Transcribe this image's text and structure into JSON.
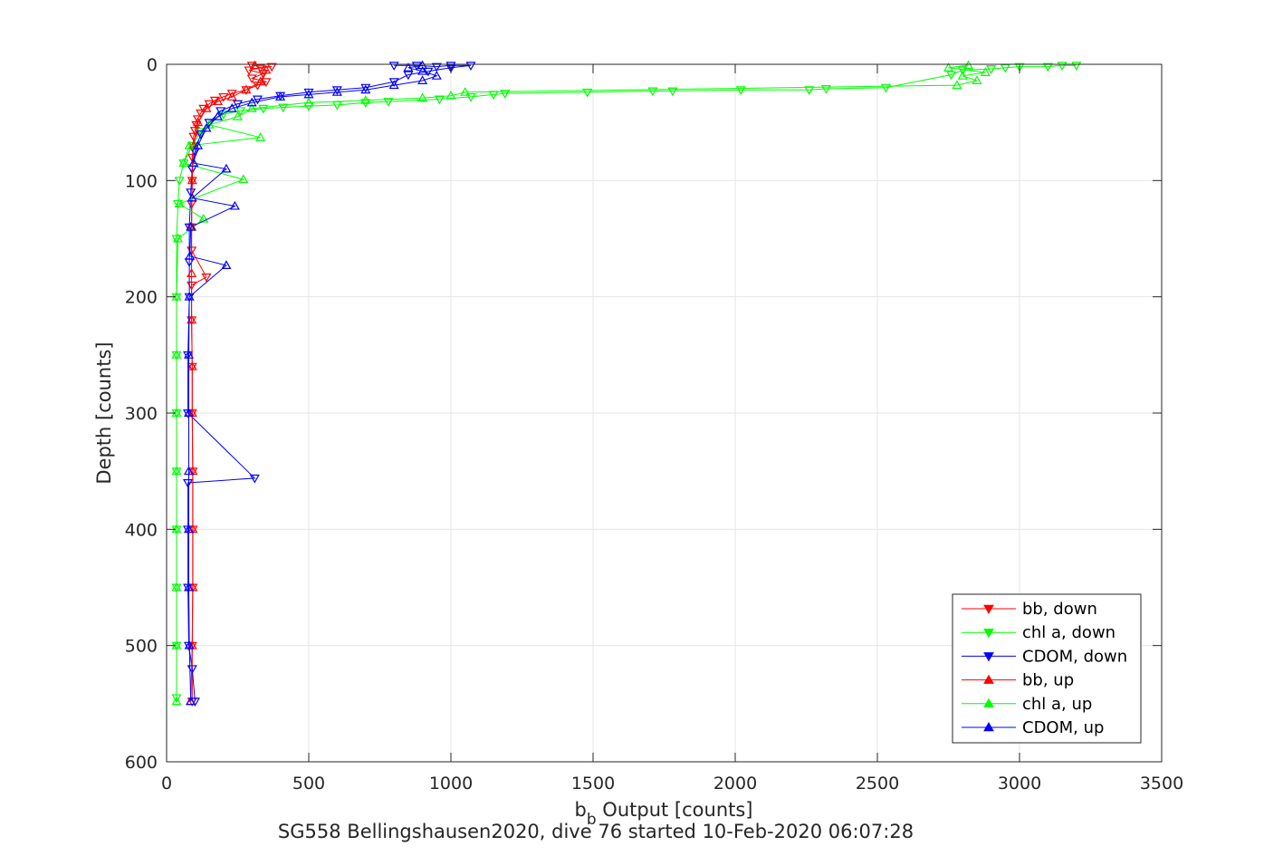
{
  "chart_data": {
    "type": "line",
    "title": "",
    "xlabel": {
      "main": "b",
      "subscript": "b",
      "rest": " Output [counts]"
    },
    "ylabel": "Depth [counts]",
    "caption": "SG558 Bellingshausen2020, dive 76 started 10-Feb-2020 06:07:28",
    "xlim": [
      0,
      3500
    ],
    "ylim": [
      0,
      600
    ],
    "y_reversed": true,
    "grid": true,
    "legend_position": "bottom-right",
    "x_ticks": [
      0,
      500,
      1000,
      1500,
      2000,
      2500,
      3000,
      3500
    ],
    "y_ticks": [
      0,
      100,
      200,
      300,
      400,
      500,
      600
    ],
    "series": [
      {
        "name": "bb, down",
        "color": "#ff0000",
        "marker": "triangle-down",
        "points": [
          [
            300,
            1
          ],
          [
            370,
            2
          ],
          [
            330,
            3
          ],
          [
            290,
            5
          ],
          [
            340,
            8
          ],
          [
            300,
            12
          ],
          [
            350,
            15
          ],
          [
            320,
            18
          ],
          [
            280,
            22
          ],
          [
            230,
            25
          ],
          [
            200,
            28
          ],
          [
            170,
            31
          ],
          [
            150,
            34
          ],
          [
            130,
            38
          ],
          [
            120,
            42
          ],
          [
            110,
            47
          ],
          [
            105,
            52
          ],
          [
            100,
            57
          ],
          [
            95,
            62
          ],
          [
            95,
            70
          ],
          [
            90,
            80
          ],
          [
            90,
            90
          ],
          [
            90,
            100
          ],
          [
            88,
            120
          ],
          [
            88,
            140
          ],
          [
            88,
            160
          ],
          [
            140,
            183
          ],
          [
            88,
            190
          ],
          [
            88,
            220
          ],
          [
            90,
            260
          ],
          [
            90,
            300
          ],
          [
            92,
            350
          ],
          [
            92,
            400
          ],
          [
            92,
            450
          ],
          [
            90,
            500
          ],
          [
            90,
            548
          ]
        ]
      },
      {
        "name": "chl a, down",
        "color": "#00ff00",
        "marker": "triangle-down",
        "points": [
          [
            3200,
            1
          ],
          [
            3150,
            1
          ],
          [
            3100,
            2
          ],
          [
            3000,
            2
          ],
          [
            2950,
            3
          ],
          [
            2900,
            4
          ],
          [
            2800,
            5
          ],
          [
            2760,
            9
          ],
          [
            2530,
            20
          ],
          [
            2320,
            21
          ],
          [
            2260,
            22
          ],
          [
            2020,
            22
          ],
          [
            1780,
            23
          ],
          [
            1710,
            23
          ],
          [
            1480,
            24
          ],
          [
            1190,
            25
          ],
          [
            1150,
            26
          ],
          [
            1070,
            28
          ],
          [
            960,
            30
          ],
          [
            780,
            32
          ],
          [
            700,
            33
          ],
          [
            600,
            35
          ],
          [
            500,
            36
          ],
          [
            410,
            37
          ],
          [
            340,
            38
          ],
          [
            260,
            40
          ],
          [
            200,
            43
          ],
          [
            150,
            50
          ],
          [
            120,
            58
          ],
          [
            90,
            70
          ],
          [
            60,
            85
          ],
          [
            45,
            100
          ],
          [
            40,
            120
          ],
          [
            35,
            150
          ],
          [
            35,
            200
          ],
          [
            35,
            250
          ],
          [
            35,
            300
          ],
          [
            35,
            350
          ],
          [
            35,
            400
          ],
          [
            35,
            450
          ],
          [
            35,
            500
          ],
          [
            35,
            545
          ]
        ]
      },
      {
        "name": "CDOM, down",
        "color": "#0000ff",
        "marker": "triangle-down",
        "points": [
          [
            800,
            1
          ],
          [
            880,
            1
          ],
          [
            950,
            2
          ],
          [
            1000,
            1
          ],
          [
            1070,
            1
          ],
          [
            1000,
            3
          ],
          [
            920,
            6
          ],
          [
            850,
            9
          ],
          [
            800,
            15
          ],
          [
            700,
            20
          ],
          [
            600,
            22
          ],
          [
            500,
            24
          ],
          [
            400,
            27
          ],
          [
            320,
            30
          ],
          [
            250,
            34
          ],
          [
            190,
            40
          ],
          [
            150,
            50
          ],
          [
            120,
            60
          ],
          [
            100,
            75
          ],
          [
            90,
            90
          ],
          [
            85,
            110
          ],
          [
            80,
            140
          ],
          [
            80,
            170
          ],
          [
            80,
            200
          ],
          [
            75,
            250
          ],
          [
            75,
            300
          ],
          [
            310,
            356
          ],
          [
            75,
            360
          ],
          [
            75,
            400
          ],
          [
            75,
            450
          ],
          [
            78,
            500
          ],
          [
            90,
            520
          ],
          [
            100,
            548
          ]
        ]
      },
      {
        "name": "bb, up",
        "color": "#ff0000",
        "marker": "triangle-up",
        "points": [
          [
            85,
            548
          ],
          [
            90,
            500
          ],
          [
            92,
            450
          ],
          [
            92,
            400
          ],
          [
            92,
            350
          ],
          [
            90,
            300
          ],
          [
            90,
            260
          ],
          [
            88,
            220
          ],
          [
            88,
            180
          ],
          [
            88,
            140
          ],
          [
            90,
            100
          ],
          [
            95,
            70
          ],
          [
            110,
            50
          ],
          [
            140,
            38
          ],
          [
            180,
            32
          ],
          [
            230,
            28
          ],
          [
            280,
            22
          ],
          [
            330,
            15
          ],
          [
            350,
            5
          ],
          [
            310,
            1
          ]
        ]
      },
      {
        "name": "chl a, up",
        "color": "#00ff00",
        "marker": "triangle-up",
        "points": [
          [
            35,
            548
          ],
          [
            35,
            500
          ],
          [
            35,
            450
          ],
          [
            35,
            400
          ],
          [
            35,
            350
          ],
          [
            35,
            300
          ],
          [
            35,
            250
          ],
          [
            35,
            200
          ],
          [
            40,
            150
          ],
          [
            130,
            133
          ],
          [
            45,
            120
          ],
          [
            270,
            99
          ],
          [
            60,
            85
          ],
          [
            80,
            70
          ],
          [
            330,
            63
          ],
          [
            150,
            52
          ],
          [
            250,
            45
          ],
          [
            300,
            38
          ],
          [
            500,
            33
          ],
          [
            700,
            31
          ],
          [
            900,
            29
          ],
          [
            1000,
            27
          ],
          [
            1050,
            24
          ],
          [
            2780,
            18
          ],
          [
            2850,
            14
          ],
          [
            2800,
            10
          ],
          [
            2880,
            7
          ],
          [
            2750,
            3
          ],
          [
            2820,
            1
          ]
        ]
      },
      {
        "name": "CDOM, up",
        "color": "#0000ff",
        "marker": "triangle-up",
        "points": [
          [
            85,
            548
          ],
          [
            80,
            500
          ],
          [
            78,
            450
          ],
          [
            78,
            400
          ],
          [
            78,
            350
          ],
          [
            78,
            300
          ],
          [
            78,
            250
          ],
          [
            80,
            200
          ],
          [
            210,
            173
          ],
          [
            82,
            165
          ],
          [
            85,
            140
          ],
          [
            240,
            122
          ],
          [
            90,
            115
          ],
          [
            210,
            90
          ],
          [
            95,
            85
          ],
          [
            110,
            70
          ],
          [
            140,
            55
          ],
          [
            180,
            45
          ],
          [
            230,
            38
          ],
          [
            300,
            33
          ],
          [
            400,
            28
          ],
          [
            500,
            26
          ],
          [
            600,
            24
          ],
          [
            700,
            22
          ],
          [
            800,
            18
          ],
          [
            900,
            14
          ],
          [
            950,
            10
          ],
          [
            900,
            6
          ],
          [
            850,
            3
          ],
          [
            900,
            1
          ]
        ]
      }
    ]
  }
}
